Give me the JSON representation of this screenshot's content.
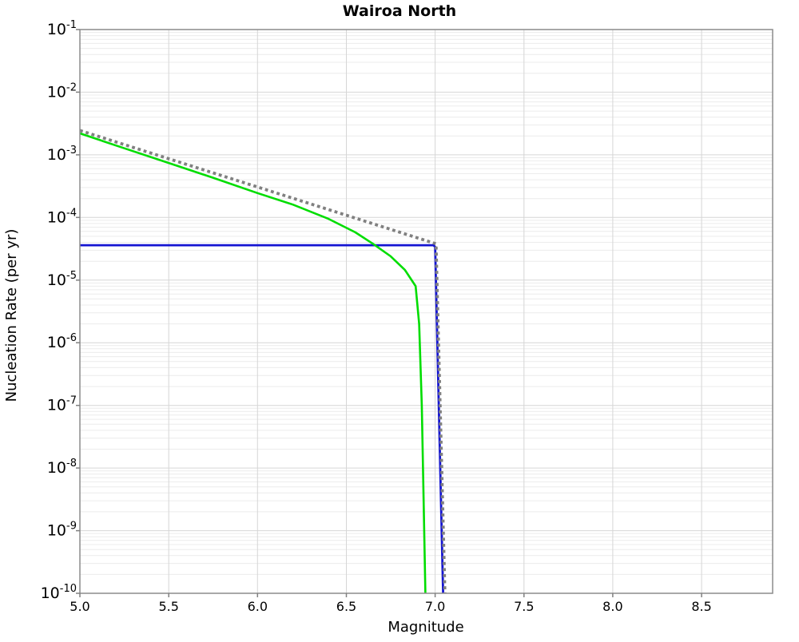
{
  "chart_data": {
    "type": "line",
    "title": "Wairoa North",
    "xlabel": "Magnitude",
    "ylabel": "Nucleation Rate (per yr)",
    "legend": "none",
    "grid": {
      "major_color": "#d6d6d6",
      "minor_color": "#ececec",
      "frame_color": "#8c8c8c",
      "tick_color": "#808080"
    },
    "x_axis": {
      "min": 5.0,
      "max": 8.9,
      "tick_values": [
        5.0,
        5.5,
        6.0,
        6.5,
        7.0,
        7.5,
        8.0,
        8.5
      ],
      "tick_labels": [
        "5.0",
        "5.5",
        "6.0",
        "6.5",
        "7.0",
        "7.5",
        "8.0",
        "8.5"
      ]
    },
    "y_axis": {
      "scale": "log",
      "min": 1e-10,
      "max": 0.1,
      "base_label": "10",
      "tick_exponents": [
        -1,
        -2,
        -3,
        -4,
        -5,
        -6,
        -7,
        -8,
        -9,
        -10
      ]
    },
    "series": [
      {
        "name": "blue-characteristic-line",
        "color": "#1414d2",
        "style": "solid",
        "width": 2.8,
        "points": [
          [
            5.0,
            3.6e-05
          ],
          [
            6.99,
            3.6e-05
          ],
          [
            7.0,
            3.4e-05
          ],
          [
            7.045,
            1e-10
          ]
        ]
      },
      {
        "name": "green-tapered-gr-line",
        "color": "#00dd00",
        "style": "solid",
        "width": 2.6,
        "points": [
          [
            5.0,
            0.0022
          ],
          [
            5.25,
            0.00127
          ],
          [
            5.5,
            0.00074
          ],
          [
            5.75,
            0.00043
          ],
          [
            6.0,
            0.000245
          ],
          [
            6.2,
            0.00016
          ],
          [
            6.4,
            9.5e-05
          ],
          [
            6.55,
            5.8e-05
          ],
          [
            6.65,
            3.8e-05
          ],
          [
            6.75,
            2.4e-05
          ],
          [
            6.83,
            1.45e-05
          ],
          [
            6.89,
            8e-06
          ],
          [
            6.91,
            2e-06
          ],
          [
            6.925,
            1e-07
          ],
          [
            6.935,
            3e-09
          ],
          [
            6.945,
            1e-10
          ]
        ]
      },
      {
        "name": "gray-dotted-gr-line",
        "color": "#808080",
        "style": "dotted",
        "width": 3.8,
        "points": [
          [
            5.0,
            0.00245
          ],
          [
            7.005,
            3.8e-05
          ],
          [
            7.055,
            1e-10
          ]
        ]
      }
    ]
  }
}
